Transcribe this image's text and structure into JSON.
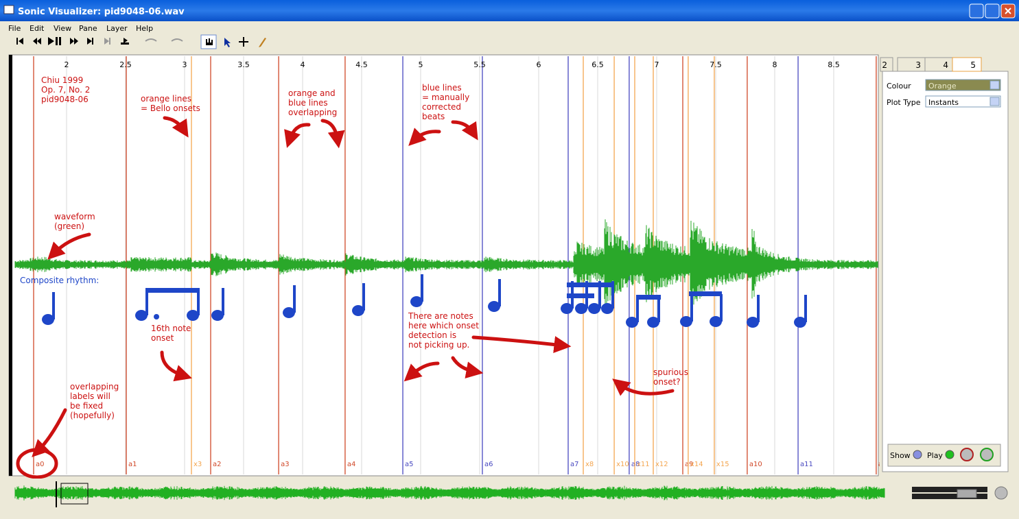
{
  "window": {
    "title": "Sonic Visualizer: pid9048-06.wav"
  },
  "menu": [
    "File",
    "Edit",
    "View",
    "Pane",
    "Layer",
    "Help"
  ],
  "ruler": {
    "ticks": [
      2,
      2.5,
      3,
      3.5,
      4,
      4.5,
      5,
      5.5,
      6,
      6.5,
      7,
      7.5,
      8,
      8.5
    ]
  },
  "annotations": [
    {
      "lines": [
        "Chiu 1999",
        "Op. 7, No. 2",
        "pid9048-06"
      ]
    },
    {
      "lines": [
        "orange lines",
        "= Bello onsets"
      ]
    },
    {
      "lines": [
        "orange and",
        "blue lines",
        "overlapping"
      ]
    },
    {
      "lines": [
        "blue lines",
        "= manually",
        "corrected",
        "beats"
      ]
    },
    {
      "lines": [
        "waveform",
        "(green)"
      ]
    },
    {
      "lines": [
        "16th note",
        "onset"
      ]
    },
    {
      "lines": [
        "There are notes",
        "here which onset",
        "detection is",
        "not picking up."
      ]
    },
    {
      "lines": [
        "overlapping",
        "labels will",
        "be fixed",
        "(hopefully)"
      ]
    },
    {
      "lines": [
        "spurious",
        "onset?"
      ]
    }
  ],
  "rhythm_label": "Composite rhythm:",
  "instants": [
    {
      "label": "a0",
      "time": 1.721,
      "color": "#d04828"
    },
    {
      "label": "a1",
      "time": 2.506,
      "color": "#d04828"
    },
    {
      "label": "x3",
      "time": 3.058,
      "color": "#f4a650"
    },
    {
      "label": "a2",
      "time": 3.221,
      "color": "#d04828"
    },
    {
      "label": "a3",
      "time": 3.797,
      "color": "#d04828"
    },
    {
      "label": "a4",
      "time": 4.36,
      "color": "#d04828"
    },
    {
      "label": "a5",
      "time": 4.849,
      "color": "#4848c0"
    },
    {
      "label": "a6",
      "time": 5.523,
      "color": "#4848c0"
    },
    {
      "label": "a7",
      "time": 6.25,
      "color": "#4848c0"
    },
    {
      "label": "x8",
      "time": 6.378,
      "color": "#f4a650"
    },
    {
      "label": "x10",
      "time": 6.64,
      "color": "#f4a650"
    },
    {
      "label": "a8",
      "time": 6.767,
      "color": "#4848c0"
    },
    {
      "label": "x11",
      "time": 6.814,
      "color": "#f4a650"
    },
    {
      "label": "x12",
      "time": 6.971,
      "color": "#f4a650"
    },
    {
      "label": "a9",
      "time": 7.221,
      "color": "#d04828"
    },
    {
      "label": "x14",
      "time": 7.267,
      "color": "#f4a650"
    },
    {
      "label": "x15",
      "time": 7.488,
      "color": "#f4a650"
    },
    {
      "label": "a10",
      "time": 7.767,
      "color": "#d04828"
    },
    {
      "label": "a11",
      "time": 8.198,
      "color": "#4848c0"
    },
    {
      "label": "a",
      "time": 8.86,
      "color": "#d04828"
    }
  ],
  "panel": {
    "tabs": [
      "2",
      "3",
      "4",
      "5"
    ],
    "properties": [
      {
        "name": "Colour",
        "value": "Orange"
      },
      {
        "name": "Plot Type",
        "value": "Instants"
      }
    ],
    "show": "Show",
    "play": "Play"
  }
}
